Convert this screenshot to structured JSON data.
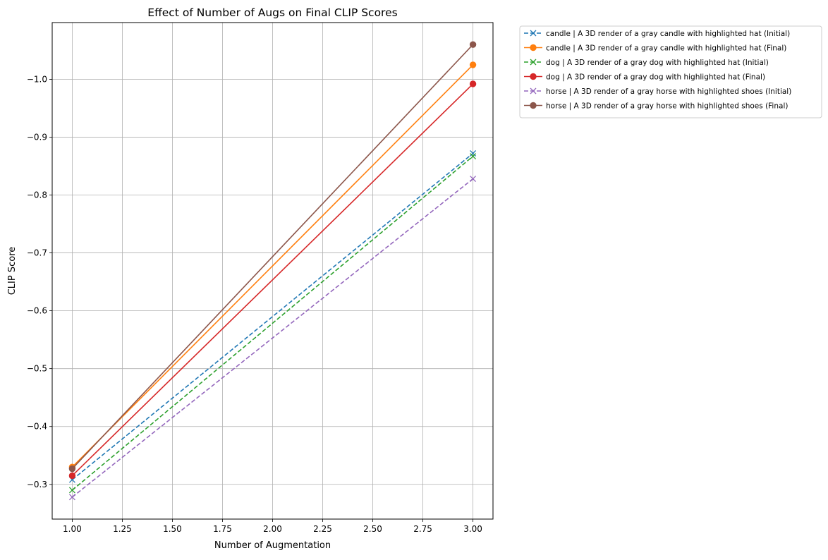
{
  "chart_data": {
    "type": "line",
    "title": "Effect of Number of Augs on Final CLIP Scores",
    "xlabel": "Number of Augmentation",
    "ylabel": "CLIP Score",
    "xlim": [
      0.9,
      3.1
    ],
    "ylim": [
      -0.24,
      -1.098
    ],
    "x_ticks": [
      1.0,
      1.25,
      1.5,
      1.75,
      2.0,
      2.25,
      2.5,
      2.75,
      3.0
    ],
    "x_tick_labels": [
      "1.00",
      "1.25",
      "1.50",
      "1.75",
      "2.00",
      "2.25",
      "2.50",
      "2.75",
      "3.00"
    ],
    "y_ticks": [
      -0.3,
      -0.4,
      -0.5,
      -0.6,
      -0.7,
      -0.8,
      -0.9,
      -1.0
    ],
    "y_tick_labels": [
      "−0.3",
      "−0.4",
      "−0.5",
      "−0.6",
      "−0.7",
      "−0.8",
      "−0.9",
      "−1.0"
    ],
    "grid": true,
    "legend_position": "outside-top-right",
    "x": [
      1.0,
      3.0
    ],
    "series": [
      {
        "name": "candle | A 3D render of a gray candle with highlighted hat (Initial)",
        "values": [
          -0.308,
          -0.872
        ],
        "color": "#1f77b4",
        "style": "dashed",
        "marker": "x"
      },
      {
        "name": "candle | A 3D render of a gray candle with highlighted hat (Final)",
        "values": [
          -0.33,
          -1.025
        ],
        "color": "#ff7f0e",
        "style": "solid",
        "marker": "o"
      },
      {
        "name": "dog | A 3D render of a gray dog with highlighted hat (Initial)",
        "values": [
          -0.29,
          -0.867
        ],
        "color": "#2ca02c",
        "style": "dashed",
        "marker": "x"
      },
      {
        "name": "dog | A 3D render of a gray dog with highlighted hat (Final)",
        "values": [
          -0.315,
          -0.992
        ],
        "color": "#d62728",
        "style": "solid",
        "marker": "o"
      },
      {
        "name": "horse | A 3D render of a gray horse with highlighted shoes (Initial)",
        "values": [
          -0.278,
          -0.828
        ],
        "color": "#9467bd",
        "style": "dashed",
        "marker": "x"
      },
      {
        "name": "horse | A 3D render of a gray horse with highlighted shoes (Final)",
        "values": [
          -0.327,
          -1.06
        ],
        "color": "#8c564b",
        "style": "solid",
        "marker": "o"
      }
    ]
  }
}
